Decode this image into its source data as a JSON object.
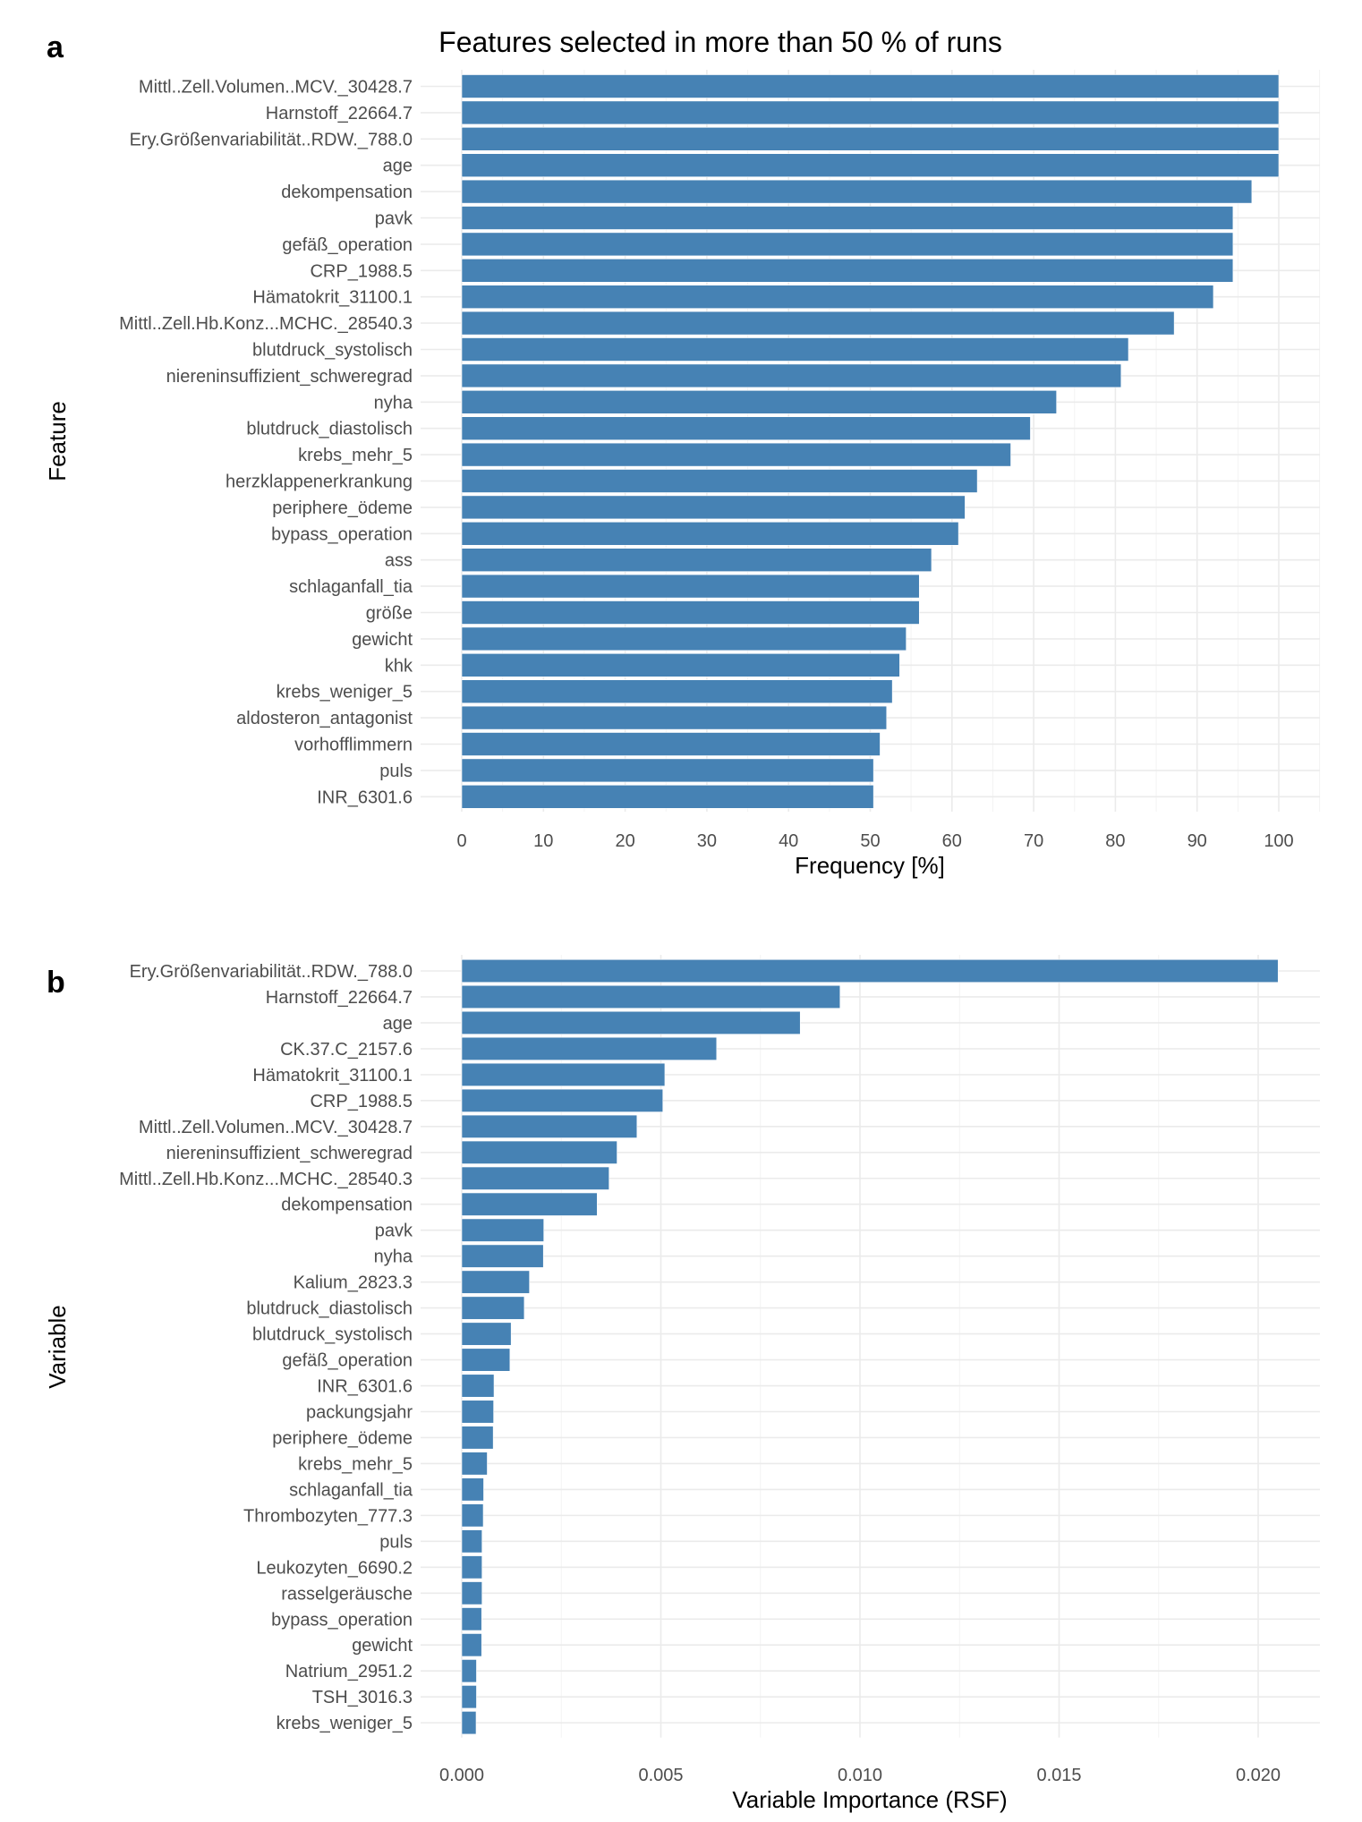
{
  "chart_data": [
    {
      "panel": "a",
      "type": "bar",
      "orientation": "horizontal",
      "title": "Features selected in more than 50 % of runs",
      "xlabel": "Frequency [%]",
      "ylabel": "Feature",
      "xlim": [
        0,
        100
      ],
      "xticks": [
        0,
        10,
        20,
        30,
        40,
        50,
        60,
        70,
        80,
        90,
        100
      ],
      "xtick_labels": [
        "0",
        "10",
        "20",
        "30",
        "40",
        "50",
        "60",
        "70",
        "80",
        "90",
        "100"
      ],
      "grid": true,
      "bar_color": "#4682b4",
      "categories": [
        "Mittl..Zell.Volumen..MCV._30428.7",
        "Harnstoff_22664.7",
        "Ery.Größenvariabilität..RDW._788.0",
        "age",
        "dekompensation",
        "pavk",
        "gefäß_operation",
        "CRP_1988.5",
        "Hämatokrit_31100.1",
        "Mittl..Zell.Hb.Konz...MCHC._28540.3",
        "blutdruck_systolisch",
        "niereninsuffizient_schweregrad",
        "nyha",
        "blutdruck_diastolisch",
        "krebs_mehr_5",
        "herzklappenerkrankung",
        "periphere_ödeme",
        "bypass_operation",
        "ass",
        "schlaganfall_tia",
        "größe",
        "gewicht",
        "khk",
        "krebs_weniger_5",
        "aldosteron_antagonist",
        "vorhofflimmern",
        "puls",
        "INR_6301.6"
      ],
      "values": [
        100,
        100,
        100,
        100,
        96.7,
        94.4,
        94.4,
        94.4,
        92.0,
        87.2,
        81.6,
        80.7,
        72.8,
        69.6,
        67.2,
        63.1,
        61.6,
        60.8,
        57.5,
        56.0,
        56.0,
        54.4,
        53.6,
        52.7,
        52.0,
        51.2,
        50.4,
        50.4
      ]
    },
    {
      "panel": "b",
      "type": "bar",
      "orientation": "horizontal",
      "title": "",
      "xlabel": "Variable Importance (RSF)",
      "ylabel": "Variable",
      "xlim": [
        0,
        0.0215
      ],
      "xticks": [
        0.0,
        0.005,
        0.01,
        0.015,
        0.02
      ],
      "xtick_labels": [
        "0.000",
        "0.005",
        "0.010",
        "0.015",
        "0.020"
      ],
      "grid": true,
      "bar_color": "#4682b4",
      "categories": [
        "Ery.Größenvariabilität..RDW._788.0",
        "Harnstoff_22664.7",
        "age",
        "CK.37.C_2157.6",
        "Hämatokrit_31100.1",
        "CRP_1988.5",
        "Mittl..Zell.Volumen..MCV._30428.7",
        "niereninsuffizient_schweregrad",
        "Mittl..Zell.Hb.Konz...MCHC._28540.3",
        "dekompensation",
        "pavk",
        "nyha",
        "Kalium_2823.3",
        "blutdruck_diastolisch",
        "blutdruck_systolisch",
        "gefäß_operation",
        "INR_6301.6",
        "packungsjahr",
        "periphere_ödeme",
        "krebs_mehr_5",
        "schlaganfall_tia",
        "Thrombozyten_777.3",
        "puls",
        "Leukozyten_6690.2",
        "rasselgeräusche",
        "bypass_operation",
        "gewicht",
        "Natrium_2951.2",
        "TSH_3016.3",
        "krebs_weniger_5"
      ],
      "values": [
        0.0205,
        0.0095,
        0.0085,
        0.0064,
        0.0051,
        0.00505,
        0.0044,
        0.0039,
        0.0037,
        0.0034,
        0.00206,
        0.00205,
        0.0017,
        0.00157,
        0.00124,
        0.00121,
        0.00081,
        0.0008,
        0.00079,
        0.00064,
        0.00055,
        0.00054,
        0.00051,
        0.00051,
        0.00051,
        0.0005,
        0.0005,
        0.00037,
        0.00037,
        0.00036
      ]
    }
  ],
  "panel_letters": [
    "a",
    "b"
  ]
}
